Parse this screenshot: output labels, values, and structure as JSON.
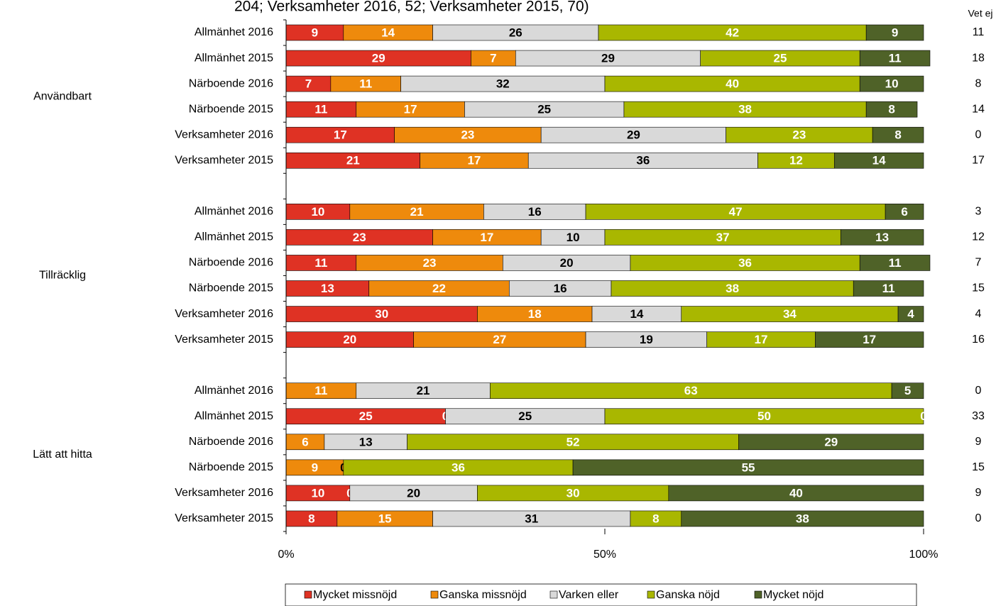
{
  "chart_data": {
    "type": "stacked-bar-horizontal",
    "title": "204; Verksamheter 2016, 52; Verksamheter 2015, 70)",
    "groups": [
      {
        "name": "Användbart",
        "categories": [
          "Allmänhet 2016",
          "Allmänhet 2015",
          "Närboende 2016",
          "Närboende 2015",
          "Verksamheter 2016",
          "Verksamheter 2015"
        ]
      },
      {
        "name": "Tillräcklig",
        "categories": [
          "Allmänhet 2016",
          "Allmänhet 2015",
          "Närboende 2016",
          "Närboende 2015",
          "Verksamheter 2016",
          "Verksamheter 2015"
        ]
      },
      {
        "name": "Lätt att hitta",
        "categories": [
          "Allmänhet 2016",
          "Allmänhet 2015",
          "Närboende 2016",
          "Närboende 2015",
          "Verksamheter 2016",
          "Verksamheter 2015"
        ]
      }
    ],
    "series": [
      {
        "name": "Mycket missnöjd",
        "color": "#df3224",
        "label_color": "#ffffff",
        "values": [
          9,
          29,
          7,
          11,
          17,
          21,
          10,
          23,
          11,
          13,
          30,
          20,
          0,
          25,
          0,
          0,
          10,
          8
        ]
      },
      {
        "name": "Ganska missnöjd",
        "color": "#ee8a0c",
        "label_color": "#ffffff",
        "values": [
          14,
          7,
          11,
          17,
          23,
          17,
          21,
          17,
          23,
          22,
          18,
          27,
          11,
          0,
          6,
          9,
          0,
          15
        ]
      },
      {
        "name": "Varken eller",
        "color": "#d9d9d9",
        "label_color": "#000000",
        "values": [
          26,
          29,
          32,
          25,
          29,
          36,
          16,
          10,
          20,
          16,
          14,
          19,
          21,
          25,
          13,
          0,
          20,
          31
        ]
      },
      {
        "name": "Ganska nöjd",
        "color": "#a9b700",
        "label_color": "#ffffff",
        "values": [
          42,
          25,
          40,
          38,
          23,
          12,
          47,
          37,
          36,
          38,
          34,
          17,
          63,
          50,
          52,
          36,
          30,
          8
        ]
      },
      {
        "name": "Mycket nöjd",
        "color": "#4f6228",
        "label_color": "#ffffff",
        "values": [
          9,
          11,
          10,
          8,
          8,
          14,
          6,
          13,
          11,
          11,
          4,
          17,
          5,
          0,
          29,
          55,
          40,
          38
        ]
      }
    ],
    "extra_column": {
      "label": "Vet ej",
      "values": [
        11,
        18,
        8,
        14,
        0,
        17,
        3,
        12,
        7,
        15,
        4,
        16,
        0,
        33,
        9,
        15,
        9,
        0
      ]
    },
    "xlim": [
      0,
      100
    ],
    "xticks": [
      {
        "value": 0,
        "label": "0%"
      },
      {
        "value": 50,
        "label": "50%"
      },
      {
        "value": 100,
        "label": "100%"
      }
    ],
    "legend": "bottom"
  }
}
